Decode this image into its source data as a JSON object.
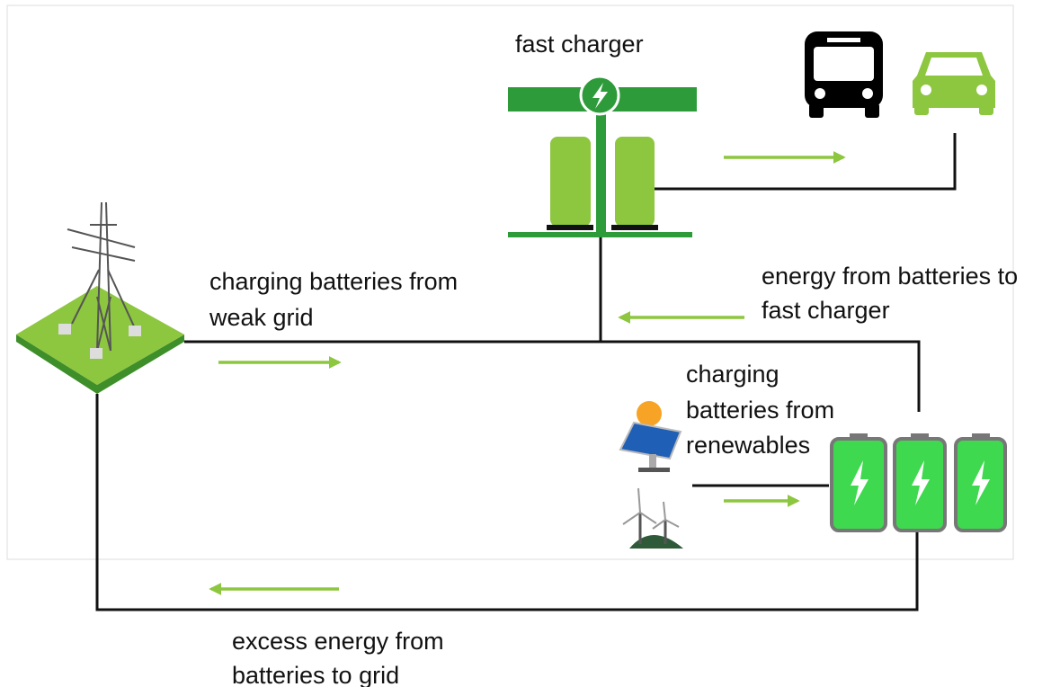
{
  "labels": {
    "fast_charger": [
      "fast charger"
    ],
    "weak_grid": [
      "charging batteries from",
      "weak grid"
    ],
    "to_fast_charger": [
      "energy from batteries to",
      "fast charger"
    ],
    "renewables": [
      "charging",
      "batteries from",
      "renewables"
    ],
    "to_grid": [
      "excess energy from",
      "batteries to grid"
    ]
  }
}
